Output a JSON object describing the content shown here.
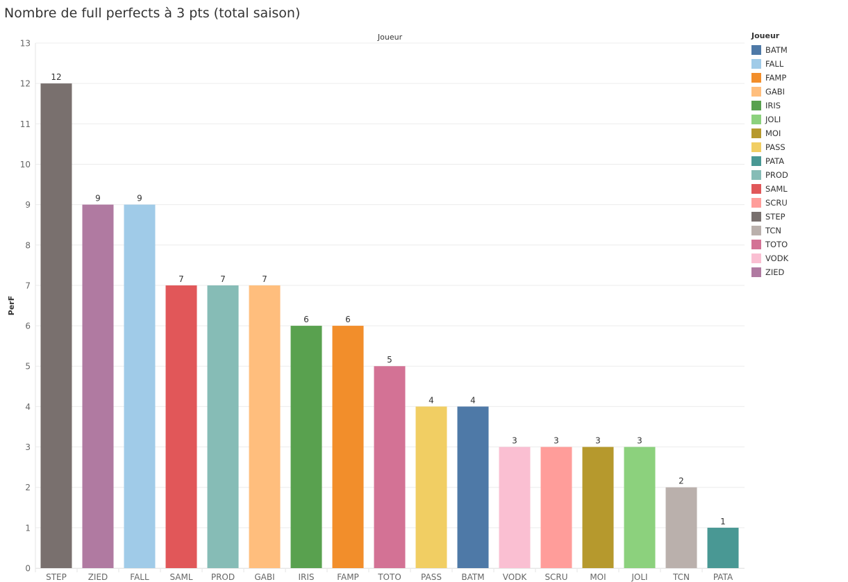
{
  "title": "Nombre de full perfects à 3 pts (total saison)",
  "chart_data": {
    "type": "bar",
    "title": "Nombre de full perfects à 3 pts (total saison)",
    "header": "Joueur",
    "xlabel": "",
    "ylabel": "PerF",
    "ylim": [
      0,
      13
    ],
    "yticks": [
      0,
      1,
      2,
      3,
      4,
      5,
      6,
      7,
      8,
      9,
      10,
      11,
      12,
      13
    ],
    "grid": true,
    "categories": [
      "STEP",
      "ZIED",
      "FALL",
      "SAML",
      "PROD",
      "GABI",
      "IRIS",
      "FAMP",
      "TOTO",
      "PASS",
      "BATM",
      "VODK",
      "SCRU",
      "MOI",
      "JOLI",
      "TCN",
      "PATA"
    ],
    "values": [
      12,
      9,
      9,
      7,
      7,
      7,
      6,
      6,
      5,
      4,
      4,
      3,
      3,
      3,
      3,
      2,
      1
    ],
    "legend_title": "Joueur",
    "legend_position": "right",
    "legend": [
      {
        "name": "BATM",
        "color": "#4e79a7"
      },
      {
        "name": "FALL",
        "color": "#a0cbe8"
      },
      {
        "name": "FAMP",
        "color": "#f28e2b"
      },
      {
        "name": "GABI",
        "color": "#ffbe7d"
      },
      {
        "name": "IRIS",
        "color": "#59a14f"
      },
      {
        "name": "JOLI",
        "color": "#8cd17d"
      },
      {
        "name": "MOI",
        "color": "#b6992d"
      },
      {
        "name": "PASS",
        "color": "#f1ce63"
      },
      {
        "name": "PATA",
        "color": "#499894"
      },
      {
        "name": "PROD",
        "color": "#86bcb6"
      },
      {
        "name": "SAML",
        "color": "#e15759"
      },
      {
        "name": "SCRU",
        "color": "#ff9d9a"
      },
      {
        "name": "STEP",
        "color": "#79706e"
      },
      {
        "name": "TCN",
        "color": "#bab0ac"
      },
      {
        "name": "TOTO",
        "color": "#d37295"
      },
      {
        "name": "VODK",
        "color": "#fabfd2"
      },
      {
        "name": "ZIED",
        "color": "#b07aa1"
      }
    ]
  }
}
